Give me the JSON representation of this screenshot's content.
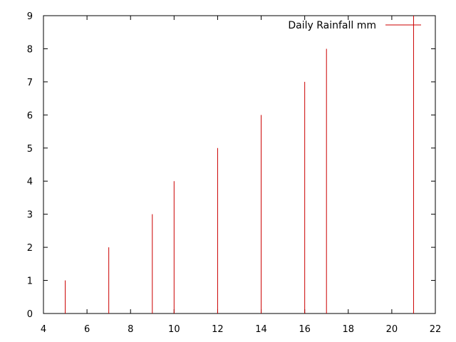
{
  "chart_data": {
    "type": "impulse",
    "x": [
      5,
      7,
      9,
      10,
      12,
      14,
      16,
      17,
      21
    ],
    "series": [
      {
        "name": "Daily Rainfall mm",
        "values": [
          1,
          2,
          3,
          4,
          5,
          6,
          7,
          8,
          9
        ],
        "color": "#cc0000"
      }
    ],
    "xlim": [
      4,
      22
    ],
    "ylim": [
      0,
      9
    ],
    "x_ticks": [
      4,
      6,
      8,
      10,
      12,
      14,
      16,
      18,
      20,
      22
    ],
    "y_ticks": [
      0,
      1,
      2,
      3,
      4,
      5,
      6,
      7,
      8,
      9
    ],
    "grid": false,
    "legend_position": "top-right",
    "frame_color": "#000000"
  }
}
